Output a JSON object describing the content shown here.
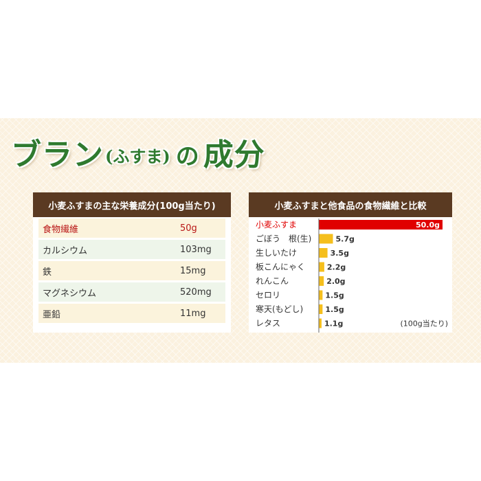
{
  "title": {
    "part1": "ブラン",
    "paren": "(ふすま)",
    "part2": "の",
    "part3": "成分"
  },
  "nutrition_table": {
    "header": "小麦ふすまの主な栄養成分(100g当たり)",
    "rows": [
      {
        "name": "食物繊維",
        "value": "50g"
      },
      {
        "name": "カルシウム",
        "value": "103mg"
      },
      {
        "name": "鉄",
        "value": "15mg"
      },
      {
        "name": "マグネシウム",
        "value": "520mg"
      },
      {
        "name": "亜鉛",
        "value": "11mg"
      }
    ]
  },
  "colors": {
    "title_green": "#2f7a2f",
    "header_brown": "#5a3a22",
    "highlight_red": "#e00000",
    "bar_yellow": "#f5bf1d"
  },
  "chart_data": {
    "type": "bar",
    "orientation": "horizontal",
    "title": "小麦ふすまと他食品の食物繊維と比較",
    "categories": [
      "小麦ふすま",
      "ごぼう　根(生)",
      "生しいたけ",
      "板こんにゃく",
      "れんこん",
      "セロリ",
      "寒天(もどし)",
      "レタス"
    ],
    "values": [
      50.0,
      5.7,
      3.5,
      2.2,
      2.0,
      1.5,
      1.5,
      1.1
    ],
    "value_labels": [
      "50.0g",
      "5.7g",
      "3.5g",
      "2.2g",
      "2.0g",
      "1.5g",
      "1.5g",
      "1.1g"
    ],
    "highlight_index": 0,
    "note": "(100g当たり)",
    "xlim": [
      0,
      50
    ]
  }
}
